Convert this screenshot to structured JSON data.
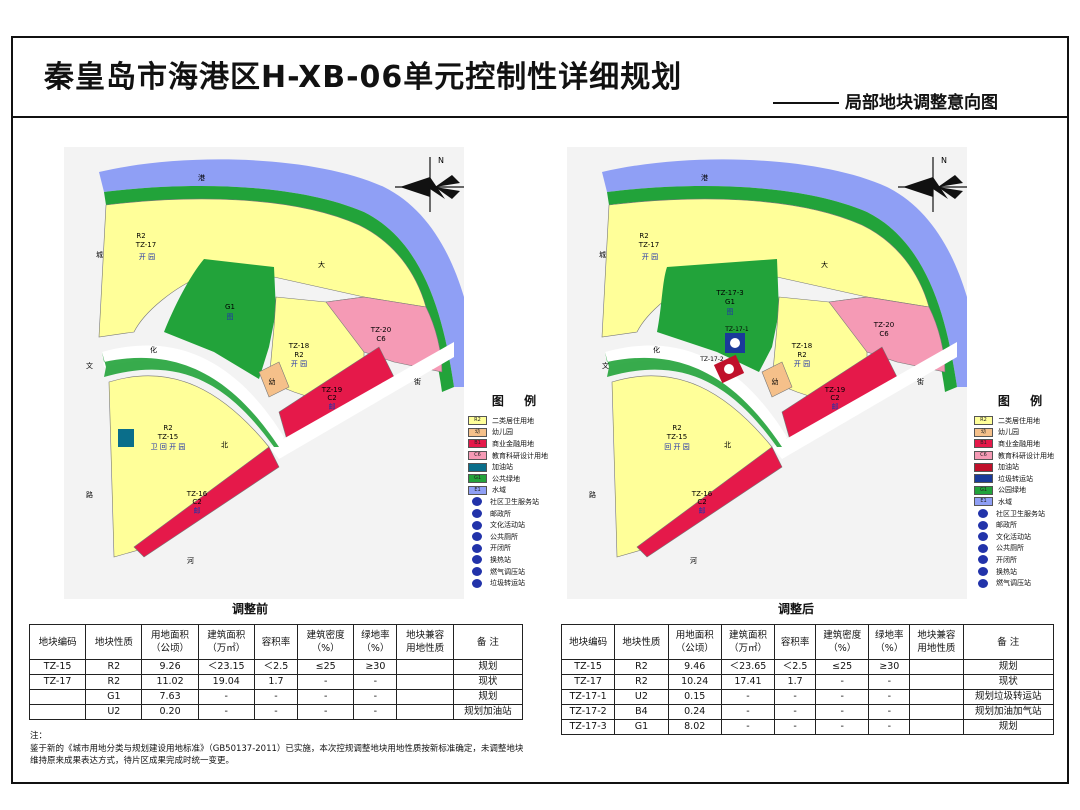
{
  "header": {
    "title": "秦皇岛市海港区H-XB-06单元控制性详细规划",
    "subtitle": "局部地块调整意向图"
  },
  "colors": {
    "residential": "#ffff99",
    "kindergarten": "#f5c08a",
    "commercial": "#e5194a",
    "education": "#f59ab5",
    "gas_station": "#0a6e8a",
    "green": "#22a33a",
    "park": "#1f8f2a",
    "water": "#8f9ff5",
    "road": "#ffffff",
    "map_bg": "#e8e8e8"
  },
  "map_common": {
    "north_label": "N",
    "street_labels": [
      "港",
      "城",
      "大",
      "街",
      "文",
      "化",
      "北",
      "路",
      "河"
    ]
  },
  "map_before": {
    "caption": "调整前",
    "parcels": {
      "tz17": {
        "code": "R2",
        "name": "TZ-17",
        "facility": "开 园"
      },
      "g1": {
        "code": "G1",
        "facility": "图"
      },
      "tz18": {
        "name": "TZ-18",
        "code": "R2",
        "facility": "开 园"
      },
      "kinder": {
        "code": "幼"
      },
      "tz20": {
        "name": "TZ-20",
        "code": "C6"
      },
      "tz19": {
        "name": "TZ-19",
        "code": "C2",
        "facility": "邮"
      },
      "tz15": {
        "code": "R2",
        "name": "TZ-15",
        "facility": "卫 回 开 园"
      },
      "tz16": {
        "name": "TZ-16",
        "code": "C2",
        "facility": "邮"
      }
    }
  },
  "map_after": {
    "caption": "调整后",
    "parcels": {
      "tz17": {
        "code": "R2",
        "name": "TZ-17",
        "facility": "开 园"
      },
      "g1": {
        "name": "TZ-17-3",
        "code": "G1",
        "facility": "图"
      },
      "tz171": {
        "name": "TZ-17-1",
        "code": "U2"
      },
      "tz172": {
        "name": "TZ-17-2",
        "code": "B4"
      },
      "tz18": {
        "name": "TZ-18",
        "code": "R2",
        "facility": "开 园"
      },
      "kinder": {
        "code": "幼"
      },
      "tz20": {
        "name": "TZ-20",
        "code": "C6"
      },
      "tz19": {
        "name": "TZ-19",
        "code": "C2",
        "facility": "邮"
      },
      "tz15": {
        "code": "R2",
        "name": "TZ-15",
        "facility": "回 开 园"
      },
      "tz16": {
        "name": "TZ-16",
        "code": "C2",
        "facility": "邮"
      }
    }
  },
  "legend_before": {
    "title": "图 例",
    "items": [
      {
        "code": "R2",
        "label": "二类居住用地",
        "type": "swatch",
        "color": "#ffff99"
      },
      {
        "code": "幼",
        "label": "幼儿园",
        "type": "swatch",
        "color": "#f5c08a"
      },
      {
        "code": "B1",
        "label": "商业金融用地",
        "type": "swatch",
        "color": "#e5194a"
      },
      {
        "code": "C6",
        "label": "教育科研设计用地",
        "type": "swatch",
        "color": "#f59ab5"
      },
      {
        "code": "",
        "label": "加油站",
        "type": "swatch",
        "color": "#0a6e8a"
      },
      {
        "code": "G1",
        "label": "公共绿地",
        "type": "swatch",
        "color": "#22a33a"
      },
      {
        "code": "E1",
        "label": "水域",
        "type": "swatch",
        "color": "#8f9ff5"
      },
      {
        "code": "",
        "label": "社区卫生服务站",
        "type": "symbol",
        "color": "#2233aa"
      },
      {
        "code": "",
        "label": "邮政所",
        "type": "symbol",
        "color": "#2233aa"
      },
      {
        "code": "",
        "label": "文化活动站",
        "type": "symbol",
        "color": "#2233aa"
      },
      {
        "code": "",
        "label": "公共厕所",
        "type": "symbol",
        "color": "#2233aa"
      },
      {
        "code": "",
        "label": "开闭所",
        "type": "symbol",
        "color": "#2233aa"
      },
      {
        "code": "",
        "label": "换热站",
        "type": "symbol",
        "color": "#2233aa"
      },
      {
        "code": "",
        "label": "燃气调压站",
        "type": "symbol",
        "color": "#2233aa"
      },
      {
        "code": "",
        "label": "垃圾转运站",
        "type": "symbol",
        "color": "#2233aa"
      }
    ]
  },
  "legend_after": {
    "title": "图 例",
    "items": [
      {
        "code": "R2",
        "label": "二类居住用地",
        "type": "swatch",
        "color": "#ffff99"
      },
      {
        "code": "幼",
        "label": "幼儿园",
        "type": "swatch",
        "color": "#f5c08a"
      },
      {
        "code": "B1",
        "label": "商业金融用地",
        "type": "swatch",
        "color": "#e5194a"
      },
      {
        "code": "C6",
        "label": "教育科研设计用地",
        "type": "swatch",
        "color": "#f59ab5"
      },
      {
        "code": "",
        "label": "加油站",
        "type": "swatch",
        "color": "#c0102a"
      },
      {
        "code": "",
        "label": "垃圾转运站",
        "type": "swatch",
        "color": "#1a3a9a"
      },
      {
        "code": "G1",
        "label": "公园绿地",
        "type": "swatch",
        "color": "#22a33a"
      },
      {
        "code": "E1",
        "label": "水域",
        "type": "swatch",
        "color": "#8f9ff5"
      },
      {
        "code": "",
        "label": "社区卫生服务站",
        "type": "symbol",
        "color": "#2233aa"
      },
      {
        "code": "",
        "label": "邮政所",
        "type": "symbol",
        "color": "#2233aa"
      },
      {
        "code": "",
        "label": "文化活动站",
        "type": "symbol",
        "color": "#2233aa"
      },
      {
        "code": "",
        "label": "公共厕所",
        "type": "symbol",
        "color": "#2233aa"
      },
      {
        "code": "",
        "label": "开闭所",
        "type": "symbol",
        "color": "#2233aa"
      },
      {
        "code": "",
        "label": "换热站",
        "type": "symbol",
        "color": "#2233aa"
      },
      {
        "code": "",
        "label": "燃气调压站",
        "type": "symbol",
        "color": "#2233aa"
      }
    ]
  },
  "table_headers": [
    "地块编码",
    "地块性质",
    "用地面积\n（公顷）",
    "建筑面积\n（万㎡）",
    "容积率",
    "建筑密度\n（%）",
    "绿地率\n（%）",
    "地块兼容\n用地性质",
    "备 注"
  ],
  "table_before": {
    "rows": [
      [
        "TZ-15",
        "R2",
        "9.26",
        "＜23.15",
        "＜2.5",
        "≤25",
        "≥30",
        "",
        "规划"
      ],
      [
        "TZ-17",
        "R2",
        "11.02",
        "19.04",
        "1.7",
        "-",
        "-",
        "",
        "现状"
      ],
      [
        "",
        "G1",
        "7.63",
        "-",
        "-",
        "-",
        "-",
        "",
        "规划"
      ],
      [
        "",
        "U2",
        "0.20",
        "-",
        "-",
        "-",
        "-",
        "",
        "规划加油站"
      ]
    ]
  },
  "table_after": {
    "rows": [
      [
        "TZ-15",
        "R2",
        "9.46",
        "＜23.65",
        "＜2.5",
        "≤25",
        "≥30",
        "",
        "规划"
      ],
      [
        "TZ-17",
        "R2",
        "10.24",
        "17.41",
        "1.7",
        "-",
        "-",
        "",
        "现状"
      ],
      [
        "TZ-17-1",
        "U2",
        "0.15",
        "-",
        "-",
        "-",
        "-",
        "",
        "规划垃圾转运站"
      ],
      [
        "TZ-17-2",
        "B4",
        "0.24",
        "-",
        "-",
        "-",
        "-",
        "",
        "规划加油加气站"
      ],
      [
        "TZ-17-3",
        "G1",
        "8.02",
        "-",
        "-",
        "-",
        "-",
        "",
        "规划"
      ]
    ]
  },
  "note": {
    "label": "注：",
    "text": "鉴于新的《城市用地分类与规划建设用地标准》（GB50137-2011）已实施，本次控规调整地块用地性质按新标准确定，未调整地块维持原来成果表达方式，待片区成果完成时统一变更。"
  }
}
